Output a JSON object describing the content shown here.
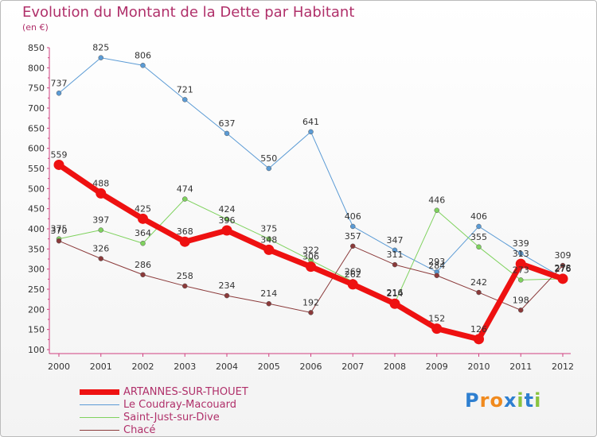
{
  "title": "Evolution du Montant de la Dette par Habitant",
  "subtitle": "(en €)",
  "logo": {
    "text": "Proxiti",
    "letters": [
      "P",
      "r",
      "o",
      "x",
      "i",
      "t",
      "i"
    ],
    "colors": [
      "#2e7fd0",
      "#f08a1e",
      "#f08a1e",
      "#2e7fd0",
      "#8ac43f",
      "#2e7fd0",
      "#8ac43f"
    ]
  },
  "chart_data": {
    "type": "line",
    "x": [
      "2000",
      "2001",
      "2002",
      "2003",
      "2004",
      "2005",
      "2006",
      "2007",
      "2008",
      "2009",
      "2010",
      "2011",
      "2012"
    ],
    "ylim": [
      100,
      850
    ],
    "yticks": [
      100,
      150,
      200,
      250,
      300,
      350,
      400,
      450,
      500,
      550,
      600,
      650,
      700,
      750,
      800,
      850
    ],
    "grid": false,
    "legend_position": "bottom",
    "series": [
      {
        "name": "ARTANNES-SUR-THOUET",
        "color": "#ee1111",
        "width": 7,
        "marker": 6.5,
        "values": [
          559,
          488,
          425,
          368,
          396,
          348,
          306,
          262,
          214,
          152,
          126,
          313,
          276
        ],
        "labels": [
          "559",
          "488",
          "425",
          "368",
          "396",
          "348",
          "306",
          "262",
          "214",
          "152",
          "126",
          "313",
          "276"
        ]
      },
      {
        "name": "Le Coudray-Macouard",
        "color": "#5b9bd5",
        "width": 1,
        "marker": 3,
        "values": [
          737,
          825,
          806,
          721,
          637,
          550,
          641,
          406,
          347,
          293,
          406,
          339,
          278
        ],
        "labels": [
          "737",
          "825",
          "806",
          "721",
          "637",
          "550",
          "641",
          "406",
          "347",
          "293",
          "406",
          "339",
          "278"
        ]
      },
      {
        "name": "Saint-Just-sur-Dive",
        "color": "#7fd25e",
        "width": 1,
        "marker": 3,
        "values": [
          375,
          397,
          364,
          474,
          424,
          375,
          322,
          269,
          216,
          446,
          355,
          273,
          276
        ],
        "labels": [
          "375",
          "397",
          "364",
          "474",
          "424",
          "375",
          "322",
          "269",
          "216",
          "446",
          "355",
          "273",
          "276"
        ]
      },
      {
        "name": "Chacé",
        "color": "#8b3a3a",
        "width": 1,
        "marker": 3,
        "values": [
          370,
          326,
          286,
          258,
          234,
          214,
          192,
          357,
          311,
          284,
          242,
          198,
          309
        ],
        "labels": [
          "370",
          "326",
          "286",
          "258",
          "234",
          "214",
          "192",
          "357",
          "311",
          "284",
          "242",
          "198",
          "309"
        ]
      }
    ]
  }
}
